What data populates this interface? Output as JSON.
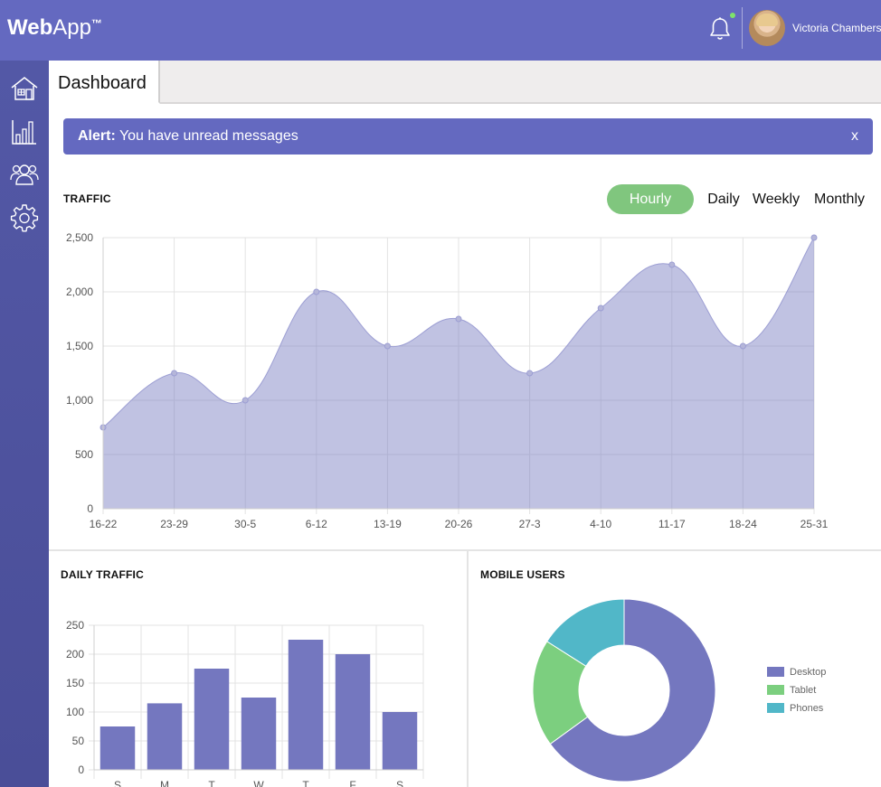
{
  "app": {
    "brand_bold": "Web",
    "brand_light": "App",
    "brand_tm": "™"
  },
  "header": {
    "user_name": "Victoria Chambers",
    "has_notification": true
  },
  "sidebar": {
    "items": [
      {
        "icon": "home-icon"
      },
      {
        "icon": "bar-chart-icon"
      },
      {
        "icon": "users-icon"
      },
      {
        "icon": "gear-icon"
      }
    ]
  },
  "tabs": {
    "active": "Dashboard"
  },
  "alert": {
    "label": "Alert:",
    "message": " You have unread messages",
    "close": "x"
  },
  "traffic": {
    "title": "TRAFFIC",
    "periods": [
      "Hourly",
      "Daily",
      "Weekly",
      "Monthly"
    ],
    "active_period": "Hourly"
  },
  "daily": {
    "title": "DAILY TRAFFIC"
  },
  "mobile": {
    "title": "MOBILE USERS"
  },
  "colors": {
    "brand": "#6469c0",
    "active_period": "#80c67e",
    "desktop": "#7477bf",
    "tablet": "#7ccf7f",
    "phones": "#51b7c8"
  },
  "chart_data": [
    {
      "type": "area",
      "categories": [
        "16-22",
        "23-29",
        "30-5",
        "6-12",
        "13-19",
        "20-26",
        "27-3",
        "4-10",
        "11-17",
        "18-24",
        "25-31"
      ],
      "values": [
        750,
        1250,
        1000,
        2000,
        1500,
        1750,
        1250,
        1850,
        2250,
        1500,
        2500
      ],
      "ylim": [
        0,
        2500
      ],
      "yticks": [
        "0",
        "500",
        "1,000",
        "1,500",
        "2,000",
        "2,500"
      ],
      "grid": true
    },
    {
      "type": "bar",
      "categories": [
        "S",
        "M",
        "T",
        "W",
        "T",
        "F",
        "S"
      ],
      "values": [
        75,
        115,
        175,
        125,
        225,
        200,
        100
      ],
      "ylim": [
        0,
        250
      ],
      "yticks": [
        "0",
        "50",
        "100",
        "150",
        "200",
        "250"
      ],
      "grid": true
    },
    {
      "type": "pie",
      "labels": [
        "Desktop",
        "Tablet",
        "Phones"
      ],
      "values": [
        65,
        19,
        16
      ],
      "legend_position": "right"
    }
  ]
}
